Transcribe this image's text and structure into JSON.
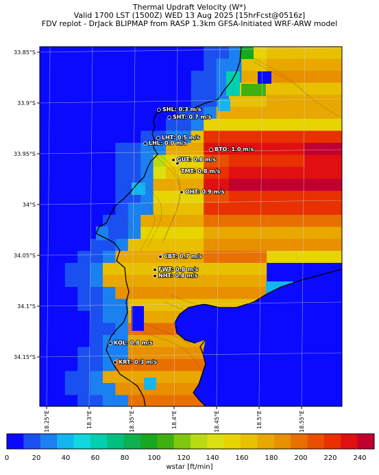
{
  "title": {
    "line1": "Thermal Updraft Velocity (W*)",
    "line2": "Valid 1700 LST (1500Z) WED 13 Aug 2025 [15hrFcst@0516z]",
    "line3": "FDV replot - DrJack BLIPMAP from RASP 1.3km GFSA-Initiated WRF-ARW model"
  },
  "axes": {
    "y_ticks": [
      "33.85°S",
      "33.9°S",
      "33.95°S",
      "34°S",
      "34.05°S",
      "34.1°S",
      "34.15°S"
    ],
    "x_ticks": [
      "18.25°E",
      "18.3°E",
      "18.35°E",
      "18.4°E",
      "18.45°E",
      "18.5°E",
      "18.55°E"
    ]
  },
  "stations": [
    {
      "label": "SHL: 0.3 m/s"
    },
    {
      "label": "SHT: 0.7 m/s"
    },
    {
      "label": "LHT: 0.5 m/s"
    },
    {
      "label": "LHL: 0.0 m/s"
    },
    {
      "label": "BTO: 1.0 m/s"
    },
    {
      "label": "GUT: 0.8 m/s"
    },
    {
      "label": "TMT: 0.8 m/s"
    },
    {
      "label": "OHT: 0.9 m/s"
    },
    {
      "label": "CBT: 0.7 m/s"
    },
    {
      "label": "FWT: 0.8 m/s"
    },
    {
      "label": "NHT: 0.8 m/s"
    },
    {
      "label": "KOL: 0.8 m/s"
    },
    {
      "label": "KRT: 0.3 m/s"
    }
  ],
  "colorbar": {
    "ticks": [
      "0",
      "20",
      "40",
      "60",
      "80",
      "100",
      "120",
      "140",
      "160",
      "180",
      "200",
      "220",
      "240"
    ],
    "label": "wstar [ft/min]",
    "colors": [
      "#0a0aff",
      "#1a50f0",
      "#1b80f0",
      "#15b5f0",
      "#10d8e0",
      "#00d0b0",
      "#00c080",
      "#10b050",
      "#18a820",
      "#40b010",
      "#80c810",
      "#b8dc10",
      "#dce010",
      "#e8d400",
      "#e8c000",
      "#e8a800",
      "#e89000",
      "#e87000",
      "#e85000",
      "#e83000",
      "#e01010",
      "#c00030"
    ]
  }
}
